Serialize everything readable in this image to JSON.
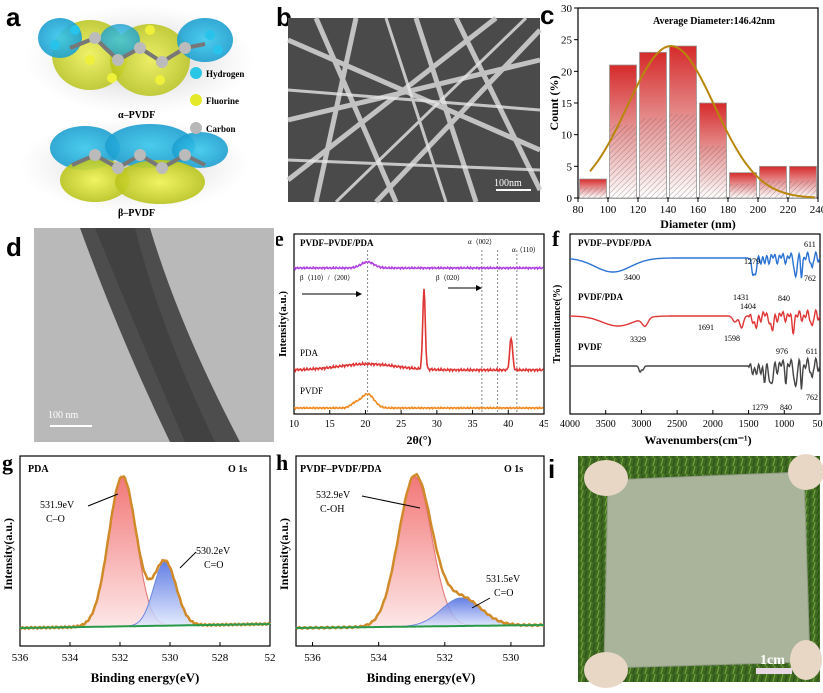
{
  "panel_labels": [
    "a",
    "b",
    "c",
    "d",
    "e",
    "f",
    "g",
    "h",
    "i"
  ],
  "molecule": {
    "alpha_label": "α–PVDF",
    "beta_label": "β–PVDF",
    "legend": [
      {
        "name": "Hydrogen",
        "color": "#29c6e6"
      },
      {
        "name": "Fluorine",
        "color": "#e4ea2a"
      },
      {
        "name": "Carbon",
        "color": "#b8b8b8"
      }
    ]
  },
  "sem": {
    "scale_label": "100nm"
  },
  "tem": {
    "scale_label": "100 nm"
  },
  "photo": {
    "scale_label": "1cm"
  },
  "chart_data": [
    {
      "id": "c",
      "type": "bar",
      "annotation": "Average Diameter:146.42nm",
      "xlabel": "Diameter (nm)",
      "ylabel": "Count (%)",
      "x": [
        90,
        110,
        130,
        150,
        170,
        190,
        210,
        230
      ],
      "values": [
        3,
        21,
        23,
        24,
        15,
        4,
        5,
        5
      ],
      "xticks": [
        "80",
        "100",
        "120",
        "140",
        "160",
        "180",
        "200",
        "220",
        "240"
      ],
      "yticks": [
        "0",
        "5",
        "10",
        "15",
        "20",
        "25",
        "30"
      ],
      "xlim": [
        80,
        240
      ],
      "ylim": [
        0,
        30
      ],
      "fit_curve": {
        "type": "gaussian",
        "center": 142,
        "peak": 24,
        "sigma": 29,
        "color": "#b8860b"
      },
      "bar_color": "#d62a2a"
    },
    {
      "id": "e",
      "type": "line",
      "xlabel": "2θ(°)",
      "ylabel": "Intensity(a.u.)",
      "xticks": [
        "10",
        "15",
        "20",
        "25",
        "30",
        "35",
        "40",
        "45"
      ],
      "xlim": [
        10,
        45
      ],
      "series": [
        {
          "name": "PVDF–PVDF/PDA",
          "color": "#b040e0"
        },
        {
          "name": "PDA",
          "color": "#e03535"
        },
        {
          "name": "PVDF",
          "color": "#f08a1e"
        }
      ],
      "annotations": [
        "β（110）/（200）",
        "β（020）",
        "α（002）",
        "α（110）"
      ],
      "peak_positions": [
        20.3,
        28.2,
        38.5,
        40.4
      ]
    },
    {
      "id": "f",
      "type": "line",
      "xlabel": "Wavenumbers(cm⁻¹)",
      "ylabel": "Transmittance(%)",
      "xticks": [
        "4000",
        "3500",
        "3000",
        "2500",
        "2000",
        "1500",
        "1000",
        "500"
      ],
      "xlim": [
        4000,
        500
      ],
      "series": [
        {
          "name": "PVDF–PVDF/PDA",
          "color": "#2b74d4"
        },
        {
          "name": "PVDF/PDA",
          "color": "#e03535"
        },
        {
          "name": "PVDF",
          "color": "#444444"
        }
      ],
      "annotations": [
        "3400",
        "1431",
        "1279",
        "1404",
        "840",
        "611",
        "762",
        "3329",
        "1691",
        "1598",
        "976",
        "611",
        "1279",
        "840",
        "762"
      ]
    },
    {
      "id": "g",
      "type": "line",
      "title": "PDA",
      "region": "O 1s",
      "xlabel": "Binding energy(eV)",
      "ylabel": "Intensity(a.u.)",
      "xticks": [
        "536",
        "534",
        "532",
        "530",
        "528",
        "52"
      ],
      "xlim": [
        536,
        526
      ],
      "peaks": [
        {
          "energy": 531.9,
          "label": "531.9eV",
          "group": "C–O"
        },
        {
          "energy": 530.2,
          "label": "530.2eV",
          "group": "C=O"
        }
      ]
    },
    {
      "id": "h",
      "type": "line",
      "title": "PVDF–PVDF/PDA",
      "region": "O 1s",
      "xlabel": "Binding energy(eV)",
      "ylabel": "Intensity(a.u.)",
      "xticks": [
        "536",
        "534",
        "532",
        "530"
      ],
      "xlim": [
        536.5,
        529
      ],
      "peaks": [
        {
          "energy": 532.9,
          "label": "532.9eV",
          "group": "C-OH"
        },
        {
          "energy": 531.5,
          "label": "531.5eV",
          "group": "C=O"
        }
      ]
    }
  ]
}
